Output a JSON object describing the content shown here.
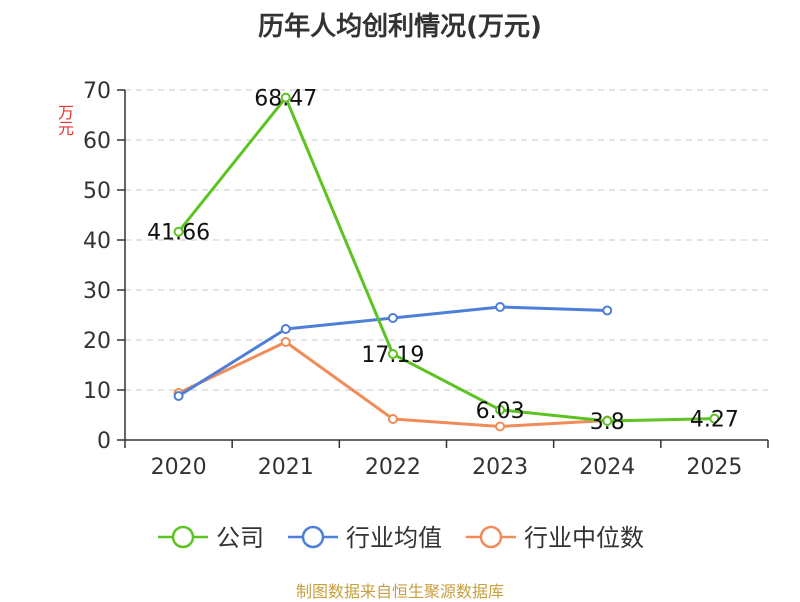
{
  "chart_data": {
    "type": "line",
    "title": "历年人均创利情况(万元)",
    "ylabel": "万元",
    "categories": [
      "2020",
      "2021",
      "2022",
      "2023",
      "2024",
      "2025"
    ],
    "ylim": [
      0,
      70
    ],
    "yticks": [
      0,
      10,
      20,
      30,
      40,
      50,
      60,
      70
    ],
    "grid": true,
    "legend_position": "bottom",
    "series": [
      {
        "name": "公司",
        "color": "#5cc322",
        "values": [
          41.66,
          68.47,
          17.19,
          6.03,
          3.8,
          4.27
        ],
        "labels": [
          "41.66",
          "68.47",
          "17.19",
          "6.03",
          "3.8",
          "4.27"
        ]
      },
      {
        "name": "行业均值",
        "color": "#4e7fd8",
        "values": [
          8.8,
          22.2,
          24.4,
          26.6,
          25.9,
          null
        ]
      },
      {
        "name": "行业中位数",
        "color": "#f08c5a",
        "values": [
          9.4,
          19.6,
          4.2,
          2.7,
          3.9,
          null
        ]
      }
    ]
  },
  "footer": "制图数据来自恒生聚源数据库"
}
